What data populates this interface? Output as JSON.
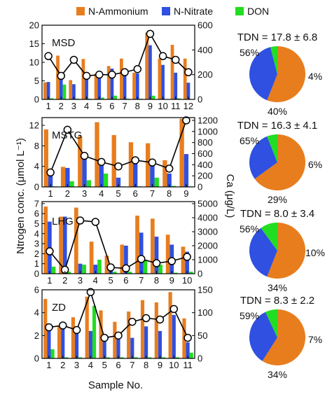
{
  "figure": {
    "y_label_left": "Ntrogen conc. (μmol L⁻¹)",
    "y_label_right": "Ca (μg/L)",
    "x_label": "Sample No."
  },
  "colors": {
    "ammonium": "#e87d1e",
    "nitrate": "#2f50e0",
    "don": "#22dd22",
    "line": "#000000",
    "marker_fill": "#ffffff"
  },
  "chart_data": [
    {
      "type": "bar",
      "panel": "MSD",
      "categories": [
        "1",
        "2",
        "3",
        "4",
        "5",
        "6",
        "7",
        "8",
        "9",
        "10",
        "11",
        "12"
      ],
      "series": [
        {
          "name": "N-Ammonium",
          "values": [
            4.6,
            11.8,
            5.2,
            10.9,
            6.9,
            9.0,
            11.0,
            7.2,
            18.0,
            11.0,
            14.7,
            11.0
          ]
        },
        {
          "name": "N-Nitrate",
          "values": [
            4.7,
            6.0,
            4.1,
            6.0,
            6.9,
            8.3,
            7.0,
            7.0,
            14.6,
            9.3,
            7.2,
            4.5
          ]
        },
        {
          "name": "DON",
          "values": [
            0.3,
            4.0,
            0.2,
            0.2,
            0.5,
            1.0,
            0.2,
            0.2,
            1.0,
            0.1,
            0.3,
            0.1
          ]
        }
      ],
      "ca_values": [
        350,
        190,
        320,
        190,
        200,
        200,
        220,
        245,
        530,
        350,
        320,
        220
      ],
      "left_yticks": [
        0,
        5,
        10,
        15,
        20
      ],
      "left_ylim": [
        0,
        20
      ],
      "right_yticks": [
        0,
        200,
        400,
        600
      ],
      "right_ylim": [
        0,
        600
      ],
      "pie": {
        "title": "TDN = 17.8 ± 6.8",
        "values": [
          56,
          40,
          4
        ],
        "labels": [
          "56%",
          "40%",
          "4%"
        ]
      }
    },
    {
      "type": "bar",
      "panel": "MSTG",
      "categories": [
        "1",
        "2",
        "3",
        "4",
        "5",
        "6",
        "7",
        "8",
        "9"
      ],
      "series": [
        {
          "name": "N-Ammonium",
          "values": [
            11.2,
            3.9,
            9.9,
            12.6,
            10.1,
            8.7,
            8.5,
            5.2,
            13.3
          ]
        },
        {
          "name": "N-Nitrate",
          "values": [
            2.1,
            3.7,
            5.6,
            4.2,
            1.8,
            4.9,
            4.5,
            2.6,
            6.4
          ]
        },
        {
          "name": "DON",
          "values": [
            0.1,
            1.1,
            1.3,
            2.6,
            0.1,
            0.1,
            1.8,
            0.2,
            0.1
          ]
        }
      ],
      "ca_values": [
        260,
        1030,
        560,
        450,
        370,
        480,
        440,
        330,
        1200
      ],
      "left_yticks": [
        0,
        4,
        8,
        12
      ],
      "left_ylim": [
        0,
        13.5
      ],
      "right_yticks": [
        0,
        200,
        400,
        600,
        800,
        1000,
        1200
      ],
      "right_ylim": [
        0,
        1250
      ],
      "pie": {
        "title": "TDN = 16.3 ± 4.1",
        "values": [
          65,
          29,
          6
        ],
        "labels": [
          "65%",
          "29%",
          "6%"
        ]
      }
    },
    {
      "type": "bar",
      "panel": "LHG",
      "categories": [
        "1",
        "2",
        "3",
        "4",
        "5",
        "6",
        "7",
        "8",
        "9",
        "10"
      ],
      "series": [
        {
          "name": "N-Ammonium",
          "values": [
            6.7,
            5.7,
            6.6,
            3.2,
            1.8,
            2.9,
            5.8,
            5.5,
            3.9,
            2.7
          ]
        },
        {
          "name": "N-Nitrate",
          "values": [
            5.2,
            5.7,
            1.0,
            0.9,
            0.7,
            2.8,
            4.1,
            3.7,
            2.9,
            2.2
          ]
        },
        {
          "name": "DON",
          "values": [
            0.7,
            0.2,
            0.9,
            1.4,
            0.2,
            0.2,
            1.3,
            0.9,
            0.1,
            0.2
          ]
        }
      ],
      "ca_values": [
        1600,
        280,
        3800,
        3700,
        450,
        380,
        1050,
        750,
        900,
        1200
      ],
      "left_yticks": [
        0,
        1,
        2,
        3,
        4,
        5,
        6,
        7
      ],
      "left_ylim": [
        0,
        7.2
      ],
      "right_yticks": [
        0,
        1000,
        2000,
        3000,
        4000,
        5000
      ],
      "right_ylim": [
        0,
        5150
      ],
      "pie": {
        "title": "TDN = 8.0 ± 3.4",
        "values": [
          56,
          34,
          10
        ],
        "labels": [
          "56%",
          "34%",
          "10%"
        ]
      }
    },
    {
      "type": "bar",
      "panel": "ZD",
      "categories": [
        "1",
        "2",
        "3",
        "4",
        "5",
        "6",
        "7",
        "8",
        "9",
        "10",
        "11"
      ],
      "series": [
        {
          "name": "N-Ammonium",
          "values": [
            5.2,
            2.8,
            3.6,
            5.4,
            4.2,
            3.2,
            4.1,
            5.1,
            4.9,
            5.8,
            3.5
          ]
        },
        {
          "name": "N-Nitrate",
          "values": [
            2.5,
            2.6,
            2.6,
            2.4,
            1.7,
            2.0,
            1.8,
            2.8,
            2.4,
            3.8,
            1.4
          ]
        },
        {
          "name": "DON",
          "values": [
            0.8,
            0.1,
            0.1,
            4.6,
            0.1,
            0.1,
            0.1,
            0.1,
            0.1,
            0.1,
            0.5
          ]
        }
      ],
      "ca_values": [
        68,
        72,
        62,
        145,
        45,
        50,
        80,
        88,
        85,
        108,
        45
      ],
      "left_yticks": [
        0,
        2,
        4,
        6
      ],
      "left_ylim": [
        0,
        6
      ],
      "right_yticks": [
        0,
        50,
        100,
        150
      ],
      "right_ylim": [
        0,
        150
      ],
      "pie": {
        "title": "TDN = 8.3 ± 2.2",
        "values": [
          59,
          34,
          7
        ],
        "labels": [
          "59%",
          "34%",
          "7%"
        ]
      }
    }
  ]
}
